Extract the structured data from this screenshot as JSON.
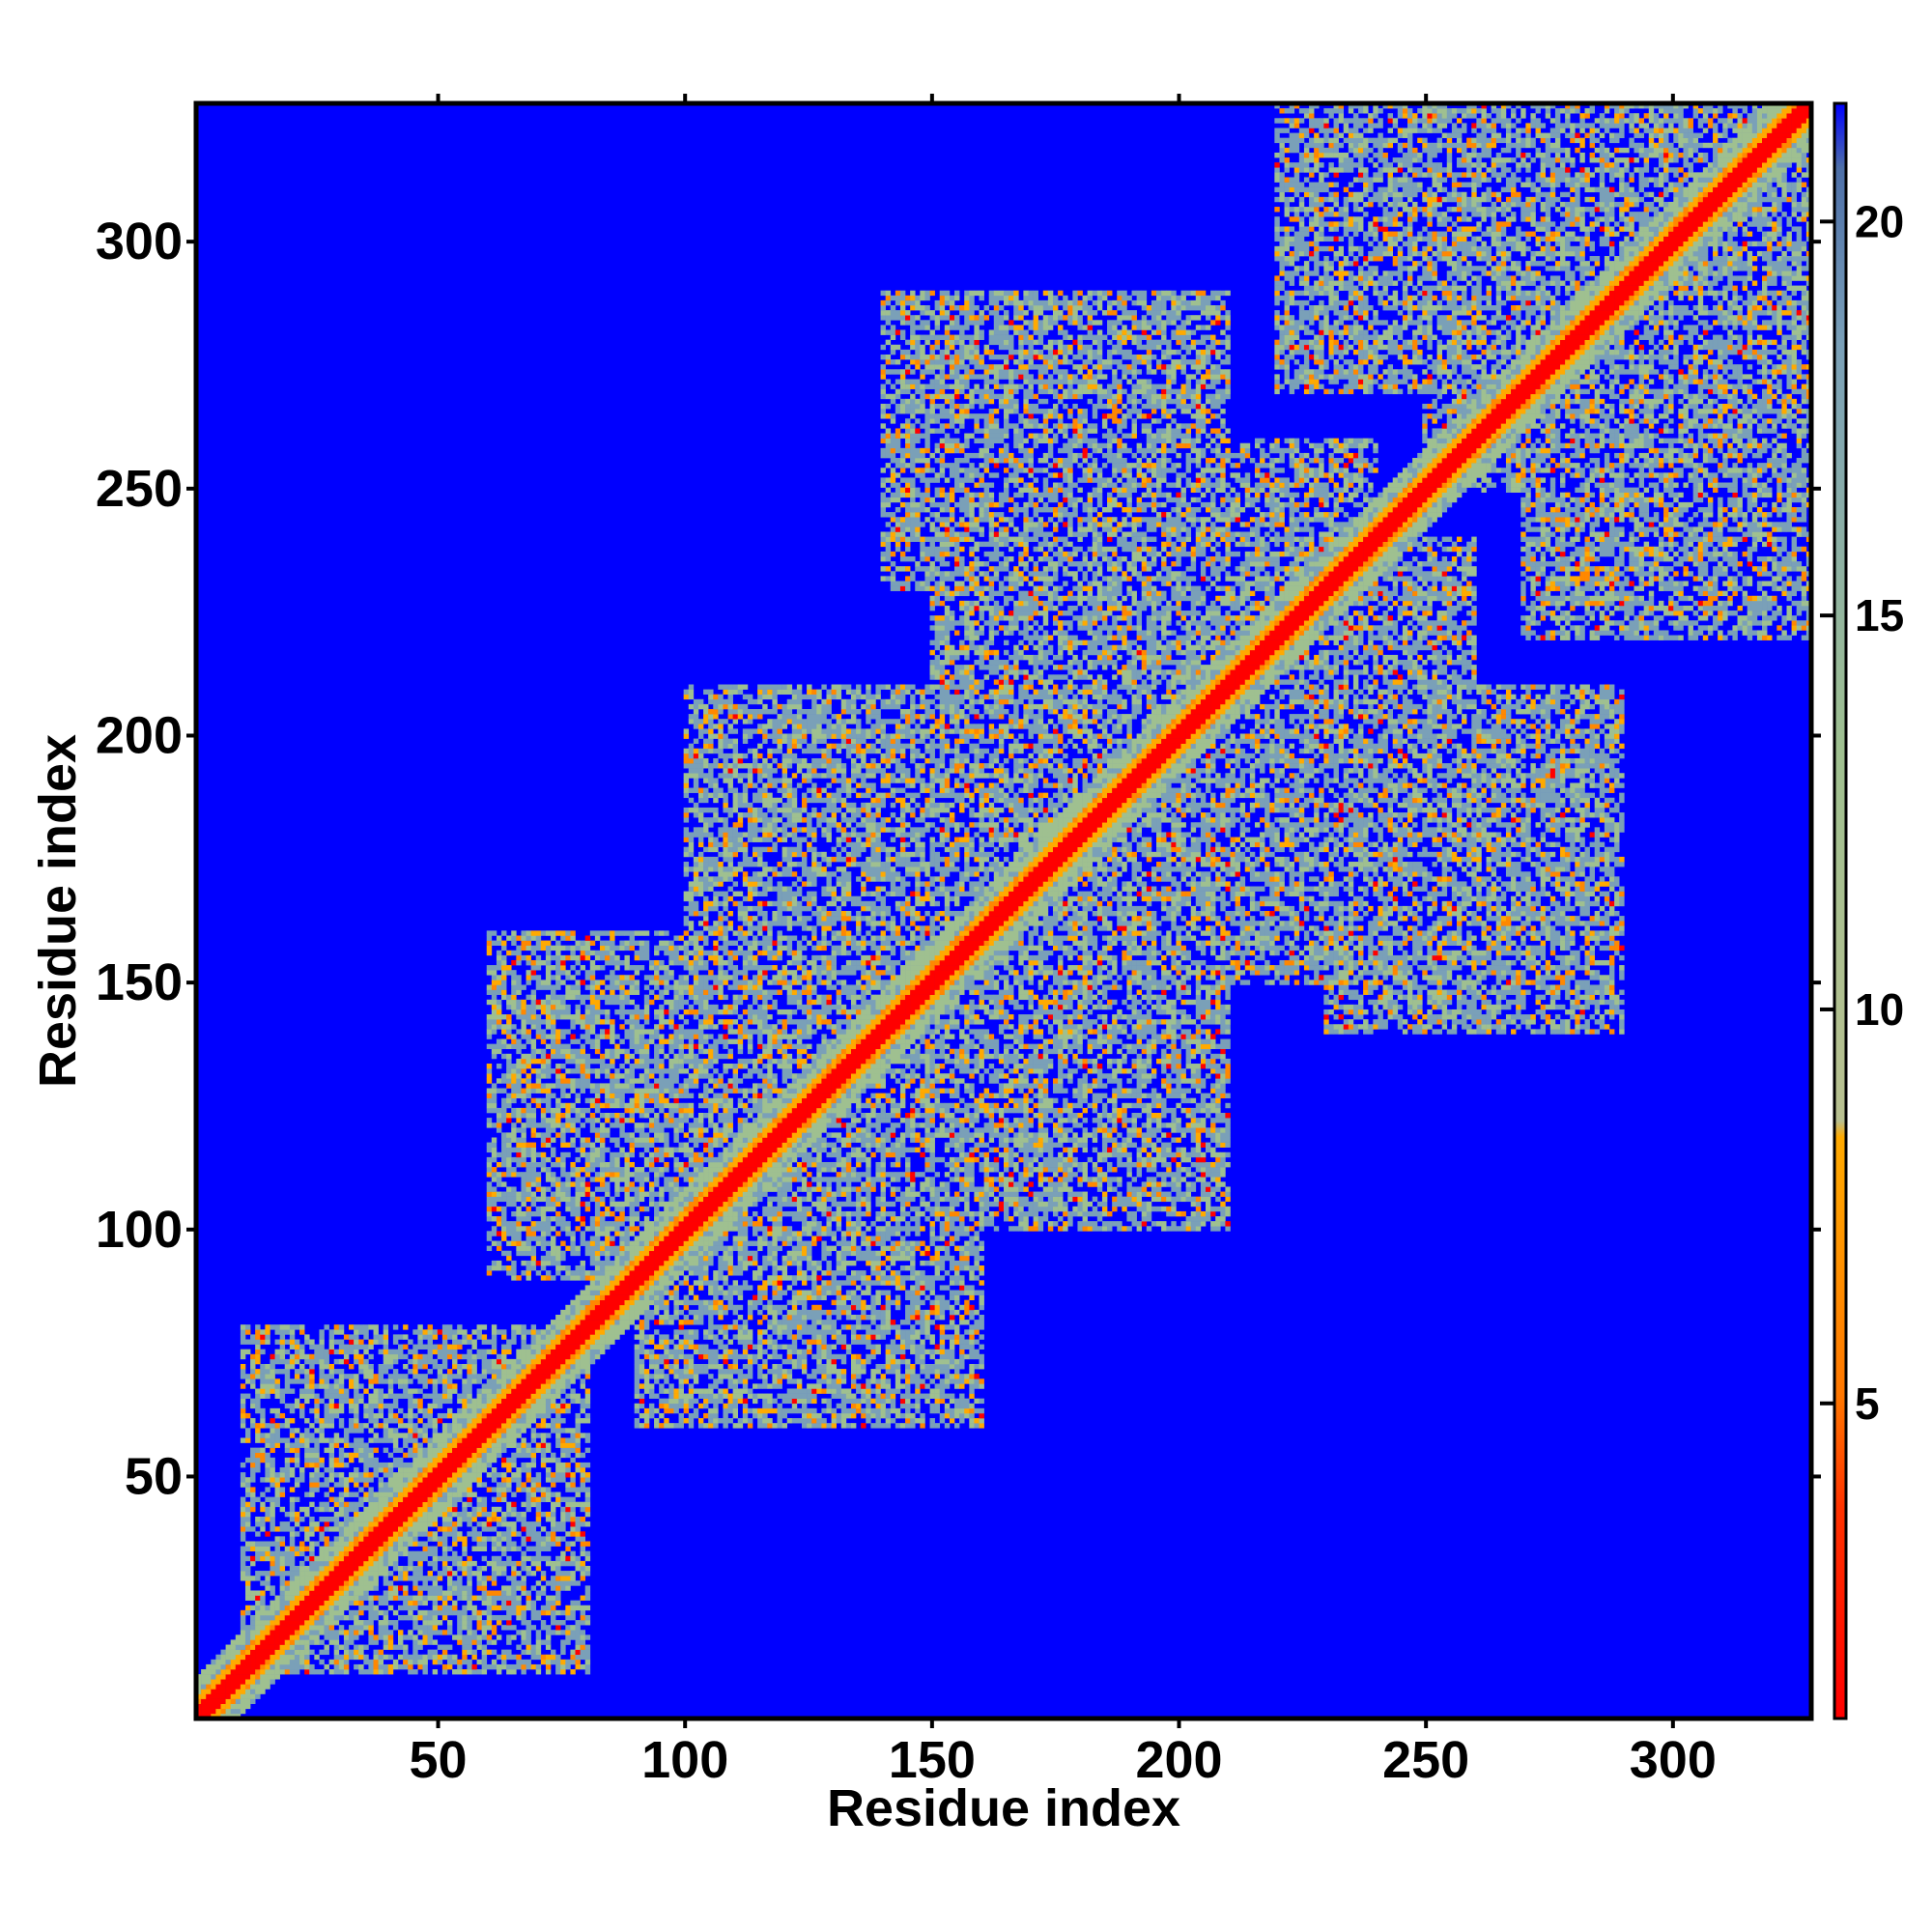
{
  "chart_data": {
    "type": "heatmap",
    "title": "",
    "xlabel": "Residue index",
    "ylabel": "Residue index",
    "xlim": [
      1,
      328
    ],
    "ylim": [
      1,
      328
    ],
    "x_ticks": [
      50,
      100,
      150,
      200,
      250,
      300
    ],
    "y_ticks": [
      50,
      100,
      150,
      200,
      250,
      300
    ],
    "colorbar": {
      "range": [
        1,
        21.5
      ],
      "ticks": [
        5,
        10,
        15,
        20
      ],
      "colors": {
        "contact": "#ff0000",
        "near": "#ff8800",
        "mid": "#ffaa00",
        "far": "#9fc090",
        "veryfar": "#7aa0b8",
        "background": "#0000ff"
      }
    },
    "matrix_description": {
      "residue_count": 328,
      "diagonal_band_value": 3.8,
      "background_value": 21,
      "contact_regions": [
        {
          "x": [
            10,
            80
          ],
          "y": [
            10,
            80
          ],
          "value": 11
        },
        {
          "x": [
            90,
            160
          ],
          "y": [
            60,
            130
          ],
          "value": 11
        },
        {
          "x": [
            140,
            210
          ],
          "y": [
            100,
            170
          ],
          "value": 11
        },
        {
          "x": [
            160,
            220
          ],
          "y": [
            150,
            210
          ],
          "value": 11
        },
        {
          "x": [
            150,
            240
          ],
          "y": [
            220,
            260
          ],
          "value": 11
        },
        {
          "x": [
            230,
            290
          ],
          "y": [
            140,
            210
          ],
          "value": 11
        },
        {
          "x": [
            250,
            328
          ],
          "y": [
            260,
            328
          ],
          "value": 11
        },
        {
          "x": [
            270,
            328
          ],
          "y": [
            220,
            300
          ],
          "value": 11
        }
      ]
    }
  }
}
